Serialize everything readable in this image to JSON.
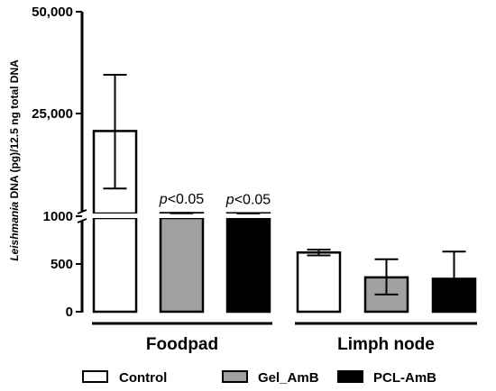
{
  "chart_data": {
    "type": "bar",
    "ylabel_italic": "Leishmania",
    "ylabel_rest": " DNA (pg)/12.5 ng total DNA",
    "yticks_upper": [
      {
        "label": "50,000",
        "value": 50000
      },
      {
        "label": "25,000",
        "value": 25000
      }
    ],
    "yticks_lower": [
      {
        "label": "1000",
        "value": 1000
      },
      {
        "label": "500",
        "value": 500
      },
      {
        "label": "0",
        "value": 0
      }
    ],
    "axis_break": true,
    "groups": [
      "Foodpad",
      "Limph node"
    ],
    "series": [
      {
        "name": "Control",
        "color": "#ffffff",
        "values": [
          20800,
          620
        ],
        "error_low": [
          7000,
          590
        ],
        "error_high": [
          34500,
          650
        ]
      },
      {
        "name": "Gel_AmB",
        "color": "#a0a0a0",
        "values": [
          1100,
          360
        ],
        "error_low": [
          1050,
          180
        ],
        "error_high": [
          1170,
          550
        ]
      },
      {
        "name": "PCL-AmB",
        "color": "#000000",
        "values": [
          1060,
          345
        ],
        "error_low": [
          1020,
          0
        ],
        "error_high": [
          1100,
          630
        ]
      }
    ],
    "annotations": [
      {
        "group": 0,
        "series": 1,
        "p": "p",
        "text": "<0.05"
      },
      {
        "group": 0,
        "series": 2,
        "p": "p",
        "text": "<0.05"
      }
    ]
  }
}
